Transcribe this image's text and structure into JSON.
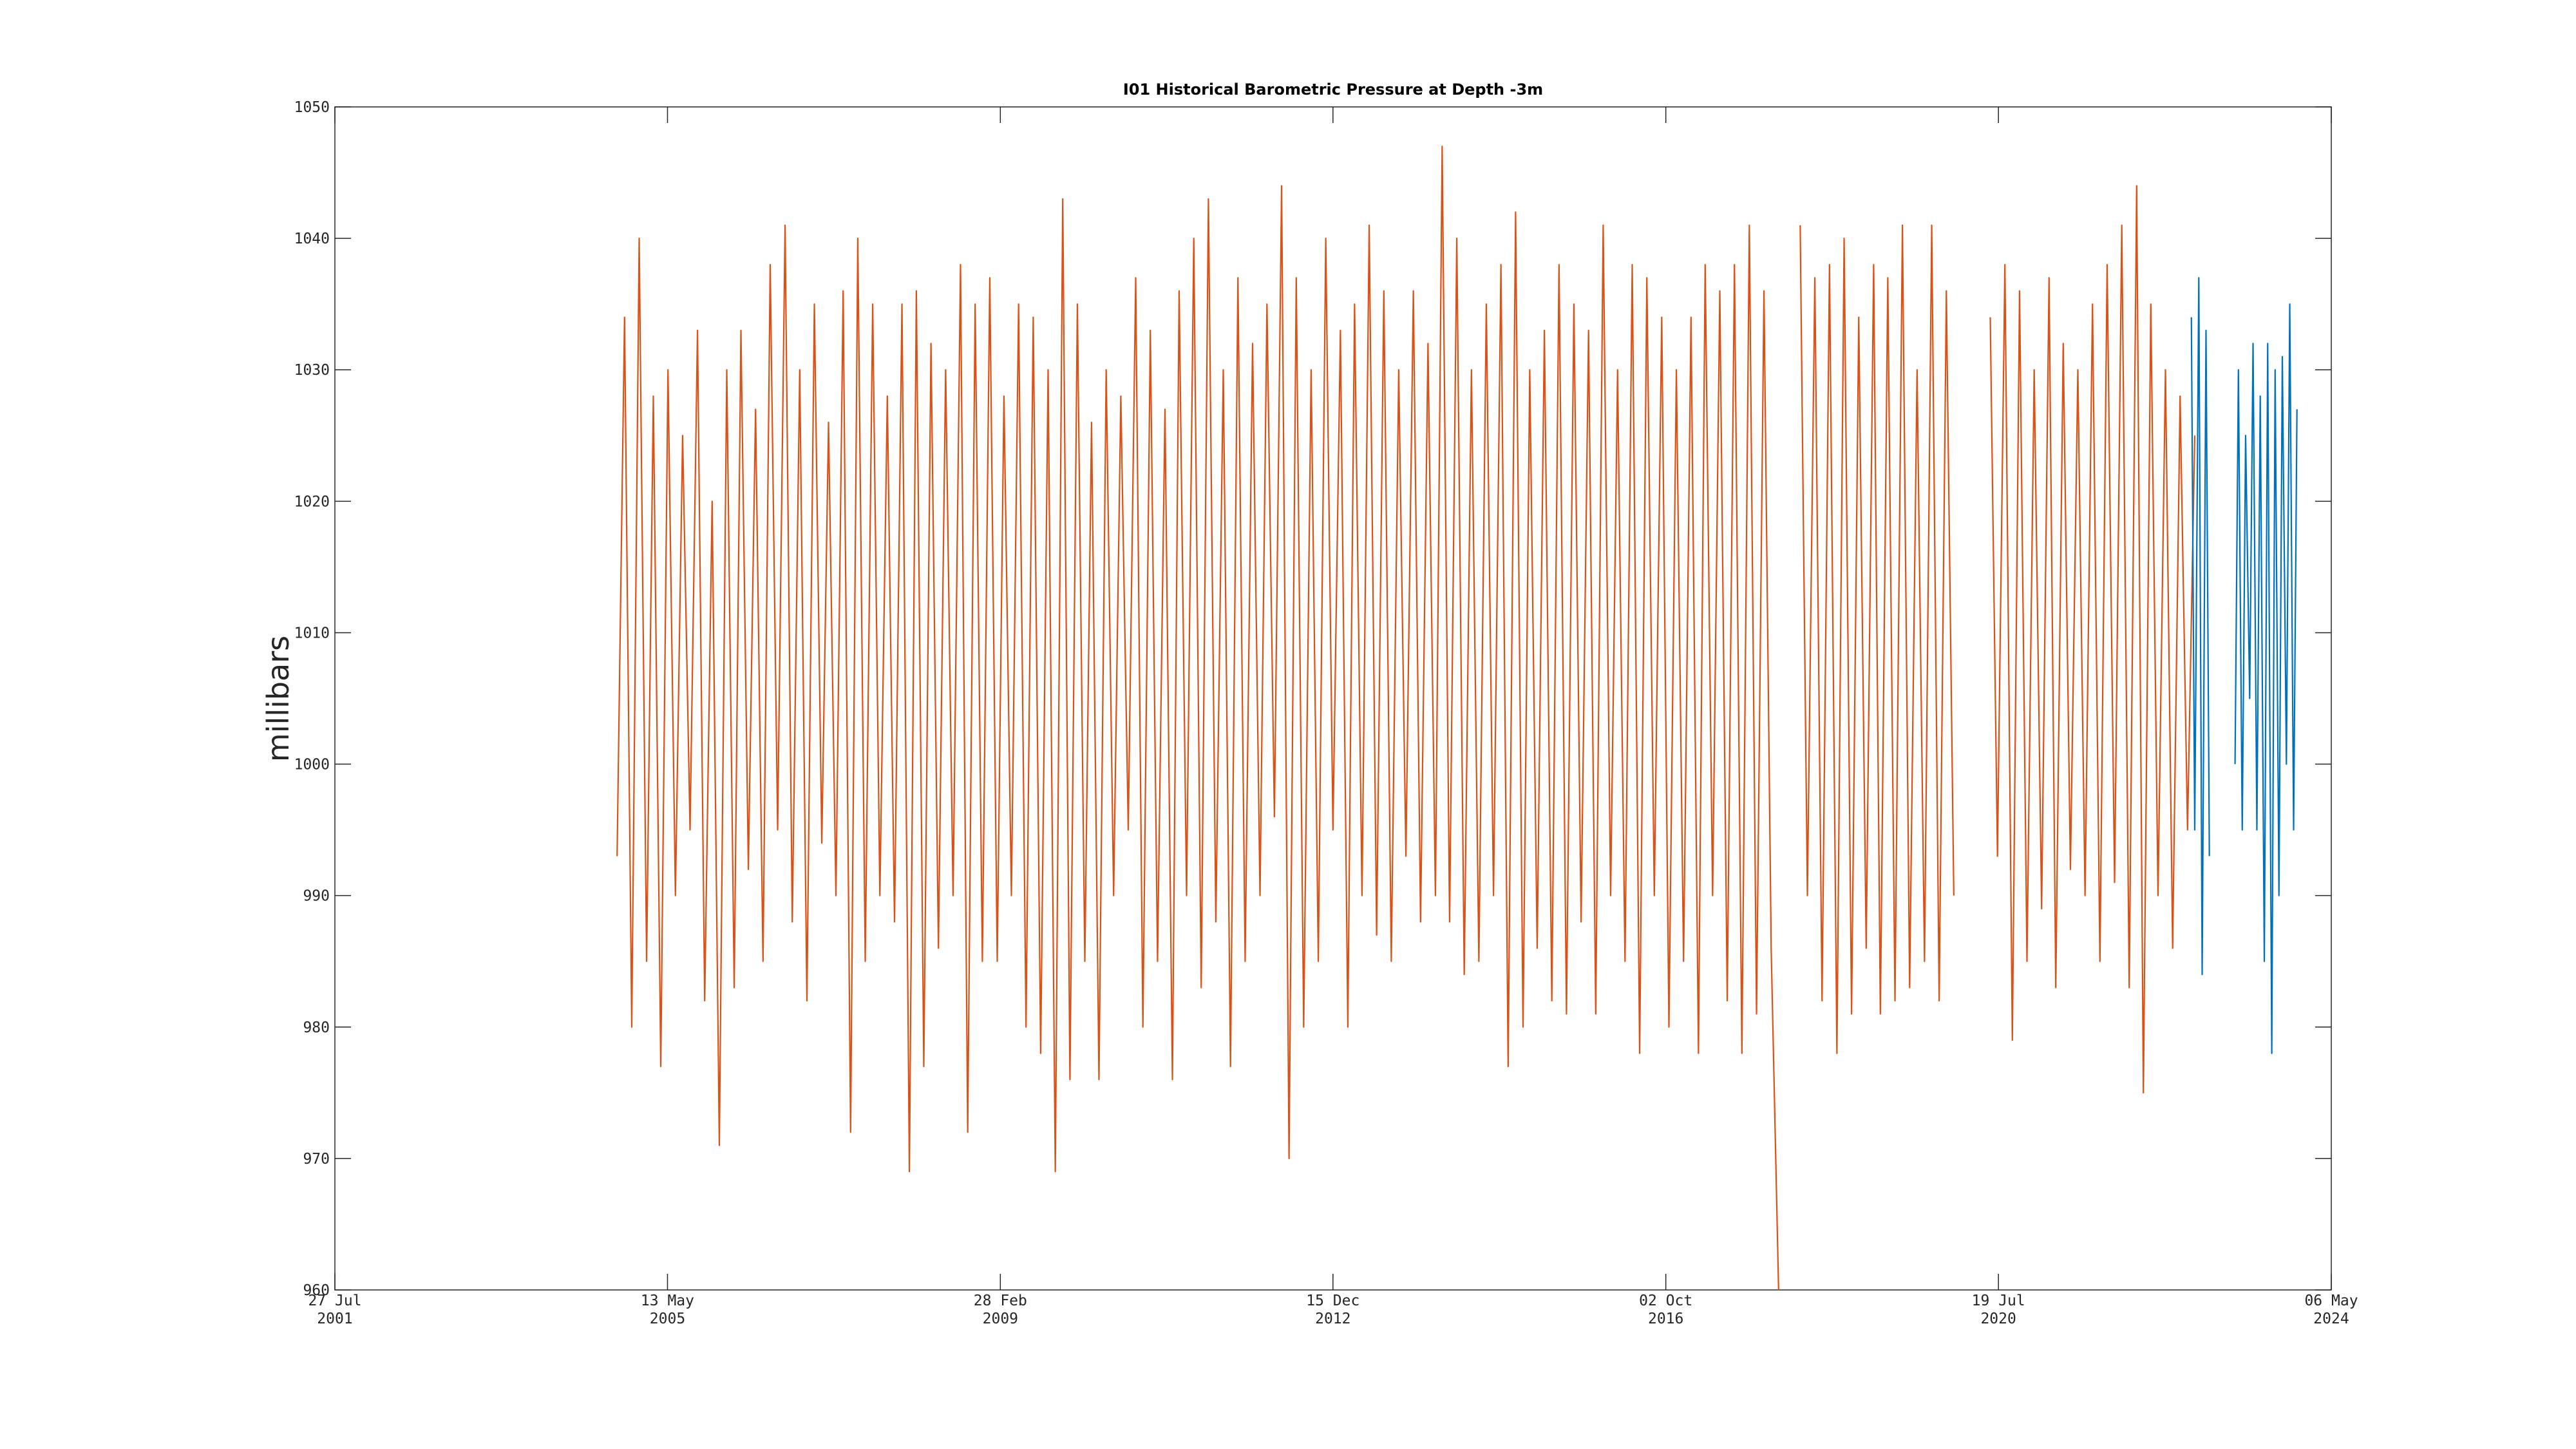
{
  "chart_data": {
    "type": "line",
    "title": "I01 Historical Barometric Pressure at Depth -3m",
    "y_label": "millibars",
    "xlim": [
      "2001-07-27",
      "2024-05-06"
    ],
    "xticks": [
      {
        "value": "2001-07-27",
        "label": [
          "27 Jul",
          "2001"
        ]
      },
      {
        "value": "2005-05-13",
        "label": [
          "13 May",
          "2005"
        ]
      },
      {
        "value": "2009-02-28",
        "label": [
          "28 Feb",
          "2009"
        ]
      },
      {
        "value": "2012-12-15",
        "label": [
          "15 Dec",
          "2012"
        ]
      },
      {
        "value": "2016-10-02",
        "label": [
          "02 Oct",
          "2016"
        ]
      },
      {
        "value": "2020-07-19",
        "label": [
          "19 Jul",
          "2020"
        ]
      },
      {
        "value": "2024-05-06",
        "label": [
          "06 May",
          "2024"
        ]
      }
    ],
    "ylim": [
      960,
      1050
    ],
    "yticks": [
      960,
      970,
      980,
      990,
      1000,
      1010,
      1020,
      1030,
      1040,
      1050
    ],
    "series": [
      {
        "color": "#d95319",
        "x": [
          "2004-10-15",
          "2004-11-15",
          "2004-12-15",
          "2005-01-15",
          "2005-02-15",
          "2005-03-15",
          "2005-04-15",
          "2005-05-15",
          "2005-06-15",
          "2005-07-15",
          "2005-08-15",
          "2005-09-15",
          "2005-10-15",
          "2005-11-15",
          "2005-12-15",
          "2006-01-15",
          "2006-02-15",
          "2006-03-15",
          "2006-04-15",
          "2006-05-15",
          "2006-06-15",
          "2006-07-15",
          "2006-08-15",
          "2006-09-15",
          "2006-10-15",
          "2006-11-15",
          "2006-12-15",
          "2007-01-15",
          "2007-02-15",
          "2007-03-15",
          "2007-04-15",
          "2007-05-15",
          "2007-06-15",
          "2007-07-15",
          "2007-08-15",
          "2007-09-15",
          "2007-10-15",
          "2007-11-15",
          "2007-12-15",
          "2008-01-15",
          "2008-02-15",
          "2008-03-15",
          "2008-04-15",
          "2008-05-15",
          "2008-06-15",
          "2008-07-15",
          "2008-08-15",
          "2008-09-15",
          "2008-10-15",
          "2008-11-15",
          "2008-12-15",
          "2009-01-15",
          "2009-02-15",
          "2009-03-15",
          "2009-04-15",
          "2009-05-15",
          "2009-06-15",
          "2009-07-15",
          "2009-08-15",
          "2009-09-15",
          "2009-10-15",
          "2009-11-15",
          "2009-12-15",
          "2010-01-15",
          "2010-02-15",
          "2010-03-15",
          "2010-04-15",
          "2010-05-15",
          "2010-06-15",
          "2010-07-15",
          "2010-08-15",
          "2010-09-15",
          "2010-10-15",
          "2010-11-15",
          "2010-12-15",
          "2011-01-15",
          "2011-02-15",
          "2011-03-15",
          "2011-04-15",
          "2011-05-15",
          "2011-06-15",
          "2011-07-15",
          "2011-08-15",
          "2011-09-15",
          "2011-10-15",
          "2011-11-15",
          "2011-12-15",
          "2012-01-15",
          "2012-02-15",
          "2012-03-15",
          "2012-04-15",
          "2012-05-15",
          "2012-06-15",
          "2012-07-15",
          "2012-08-15",
          "2012-09-15",
          "2012-10-15",
          "2012-11-15",
          "2012-12-15",
          "2013-01-15",
          "2013-02-15",
          "2013-03-15",
          "2013-04-15",
          "2013-05-15",
          "2013-06-15",
          "2013-07-15",
          "2013-08-15",
          "2013-09-15",
          "2013-10-15",
          "2013-11-15",
          "2013-12-15",
          "2014-01-15",
          "2014-02-15",
          "2014-03-15",
          "2014-04-15",
          "2014-05-15",
          "2014-06-15",
          "2014-07-15",
          "2014-08-15",
          "2014-09-15",
          "2014-10-15",
          "2014-11-15",
          "2014-12-15",
          "2015-01-15",
          "2015-02-15",
          "2015-03-15",
          "2015-04-15",
          "2015-05-15",
          "2015-06-15",
          "2015-07-15",
          "2015-08-15",
          "2015-09-15",
          "2015-10-15",
          "2015-11-15",
          "2015-12-15",
          "2016-01-15",
          "2016-02-15",
          "2016-03-15",
          "2016-04-15",
          "2016-05-15",
          "2016-06-15",
          "2016-07-15",
          "2016-08-15",
          "2016-09-15",
          "2016-10-15",
          "2016-11-15",
          "2016-12-15",
          "2017-01-15",
          "2017-02-15",
          "2017-03-15",
          "2017-04-15",
          "2017-05-15",
          "2017-06-15",
          "2017-07-15",
          "2017-08-15",
          "2017-09-15",
          "2017-10-15",
          "2017-11-15",
          "2017-12-15",
          "2018-01-15",
          "2018-02-15",
          "2018-03-15",
          "2018-04-15",
          "2018-05-15",
          "2018-06-15",
          "2018-07-15",
          "2018-08-15",
          "2018-09-15",
          "2018-10-15",
          "2018-11-15",
          "2018-12-15",
          "2019-01-15",
          "2019-02-15",
          "2019-03-15",
          "2019-04-15",
          "2019-05-15",
          "2019-06-15",
          "2019-07-15",
          "2019-08-15",
          "2019-09-15",
          "2019-10-15",
          "2019-11-15",
          "2019-12-15",
          "2020-01-15",
          "2020-02-15",
          "2020-03-15",
          "2020-04-15",
          "2020-05-15",
          "2020-06-15",
          "2020-07-15",
          "2020-08-15",
          "2020-09-15",
          "2020-10-15",
          "2020-11-15",
          "2020-12-15",
          "2021-01-15",
          "2021-02-15",
          "2021-03-15",
          "2021-04-15",
          "2021-05-15",
          "2021-06-15",
          "2021-07-15",
          "2021-08-15",
          "2021-09-15",
          "2021-10-15",
          "2021-11-15",
          "2021-12-15",
          "2022-01-15",
          "2022-02-15",
          "2022-03-15",
          "2022-04-15",
          "2022-05-15",
          "2022-06-15",
          "2022-07-15",
          "2022-08-15",
          "2022-09-15",
          "2022-10-15"
        ],
        "values": [
          993,
          1034,
          980,
          1040,
          985,
          1028,
          977,
          1030,
          990,
          1025,
          995,
          1033,
          982,
          1020,
          971,
          1030,
          983,
          1033,
          992,
          1027,
          985,
          1038,
          995,
          1041,
          988,
          1030,
          982,
          1035,
          994,
          1026,
          990,
          1036,
          972,
          1040,
          985,
          1035,
          990,
          1028,
          988,
          1035,
          969,
          1036,
          977,
          1032,
          986,
          1030,
          990,
          1038,
          972,
          1035,
          985,
          1037,
          985,
          1028,
          990,
          1035,
          980,
          1034,
          978,
          1030,
          969,
          1043,
          976,
          1035,
          985,
          1026,
          976,
          1030,
          990,
          1028,
          995,
          1037,
          980,
          1033,
          985,
          1027,
          976,
          1036,
          990,
          1040,
          983,
          1043,
          988,
          1030,
          977,
          1037,
          985,
          1032,
          990,
          1035,
          996,
          1044,
          970,
          1037,
          980,
          1030,
          985,
          1040,
          995,
          1033,
          980,
          1035,
          990,
          1041,
          987,
          1036,
          985,
          1030,
          993,
          1036,
          988,
          1032,
          990,
          1047,
          988,
          1040,
          984,
          1030,
          985,
          1035,
          990,
          1038,
          977,
          1042,
          980,
          1030,
          986,
          1033,
          982,
          1038,
          981,
          1035,
          988,
          1033,
          981,
          1041,
          990,
          1030,
          985,
          1038,
          978,
          1037,
          990,
          1034,
          980,
          1030,
          985,
          1034,
          978,
          1038,
          990,
          1036,
          982,
          1038,
          978,
          1041,
          981,
          1036,
          986,
          960,
          null,
          null,
          1041,
          990,
          1037,
          982,
          1038,
          978,
          1040,
          981,
          1034,
          986,
          1038,
          981,
          1037,
          982,
          1041,
          983,
          1030,
          985,
          1041,
          982,
          1036,
          990,
          null,
          null,
          null,
          null,
          1034,
          993,
          1038,
          979,
          1036,
          985,
          1030,
          989,
          1037,
          983,
          1032,
          992,
          1030,
          990,
          1035,
          985,
          1038,
          991,
          1041,
          983,
          1044,
          975,
          1035,
          990,
          1030,
          986,
          1028,
          995,
          1025
        ]
      },
      {
        "color": "#0072bd",
        "x": [
          "2022-10-01",
          "2022-10-15",
          "2022-11-01",
          "2022-11-15",
          "2022-12-01",
          "2022-12-15",
          "2023-01-15",
          "2023-04-01",
          "2023-04-15",
          "2023-05-01",
          "2023-05-15",
          "2023-06-01",
          "2023-06-15",
          "2023-07-01",
          "2023-07-15",
          "2023-08-01",
          "2023-08-15",
          "2023-09-01",
          "2023-09-15",
          "2023-10-01",
          "2023-10-15",
          "2023-11-01",
          "2023-11-15",
          "2023-12-01",
          "2023-12-15"
        ],
        "values": [
          1034,
          995,
          1037,
          984,
          1033,
          993,
          null,
          1000,
          1030,
          995,
          1025,
          1005,
          1032,
          995,
          1028,
          985,
          1032,
          978,
          1030,
          990,
          1031,
          1000,
          1035,
          995,
          1027
        ]
      }
    ]
  }
}
